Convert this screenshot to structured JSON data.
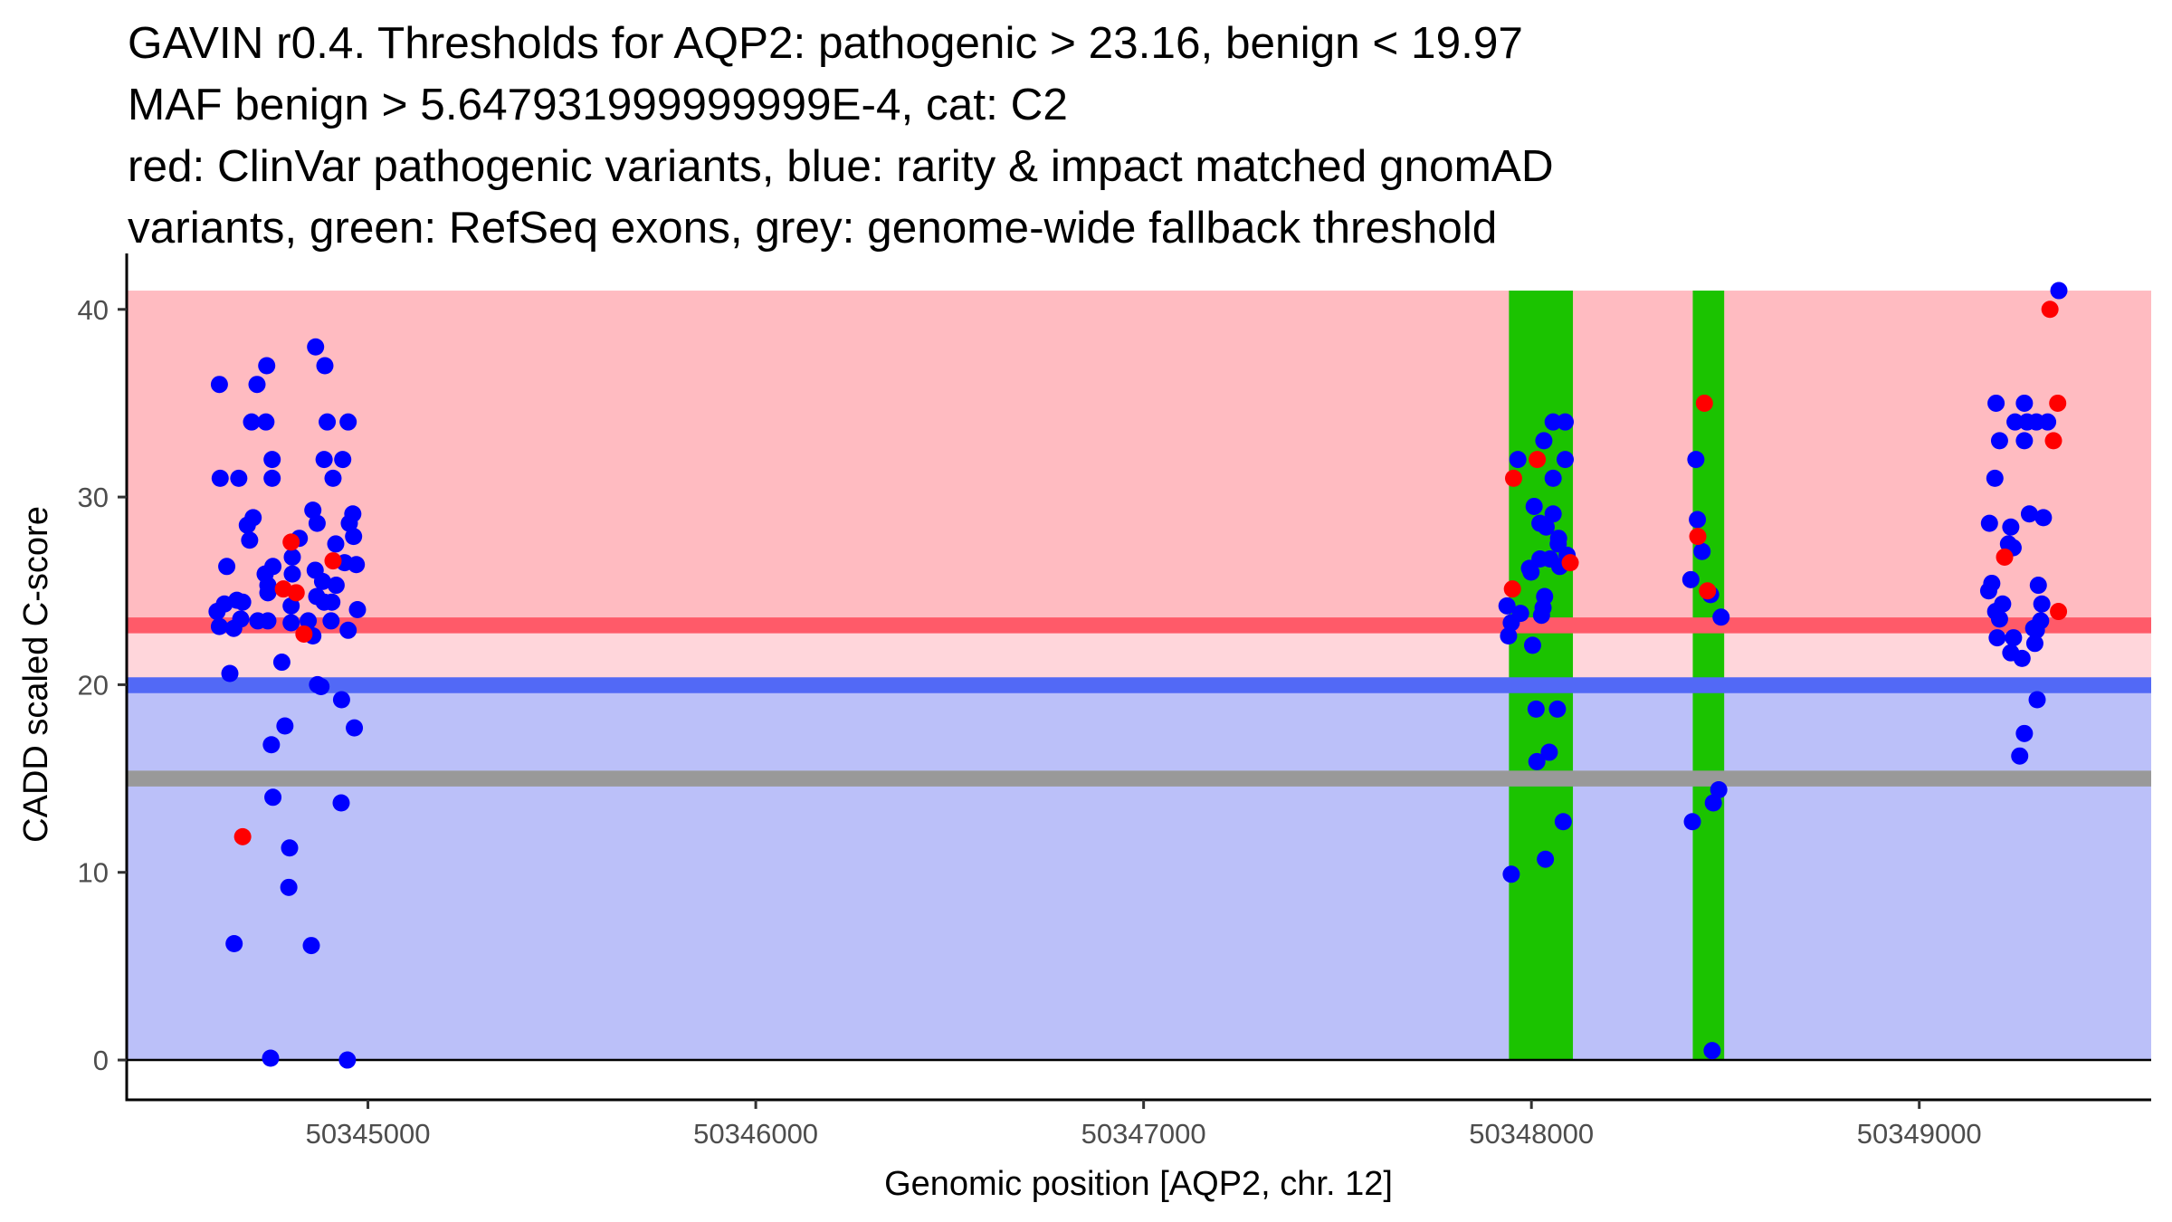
{
  "chart_data": {
    "type": "scatter",
    "title_lines": [
      "GAVIN r0.4. Thresholds for AQP2: pathogenic > 23.16, benign < 19.97",
      "MAF benign > 5.647931999999999E-4, cat: C2",
      "red: ClinVar pathogenic variants, blue: rarity & impact matched gnomAD",
      "variants, green: RefSeq exons, grey: genome-wide fallback threshold"
    ],
    "xlabel": "Genomic position [AQP2, chr. 12]",
    "ylabel": "CADD scaled C-score",
    "xlim": [
      50344378,
      50349598
    ],
    "ylim": [
      -2.12,
      42.98
    ],
    "x_ticks": [
      50345000,
      50346000,
      50347000,
      50348000,
      50349000
    ],
    "x_tick_labels": [
      "50345000",
      "50346000",
      "50347000",
      "50348000",
      "50349000"
    ],
    "y_ticks": [
      0,
      10,
      20,
      30,
      40
    ],
    "y_tick_labels": [
      "0",
      "10",
      "20",
      "30",
      "40"
    ],
    "grid": false,
    "legend": "none",
    "thresholds": {
      "pathogenic": 23.16,
      "benign": 19.97,
      "genome_wide_fallback": 15,
      "band_top": 41
    },
    "exons": [
      {
        "start": 50347942,
        "end": 50348107
      },
      {
        "start": 50348416,
        "end": 50348497
      }
    ],
    "colors": {
      "pathogenic_band": "#ffbbc1",
      "pathogenic_line": "#ff5a69",
      "grey_zone_band": "#ffd6db",
      "benign_line": "#5269f6",
      "benign_band": "#bbc0f9",
      "fallback_line": "#999999",
      "exon": "#1bc300",
      "clinvar_point": "#ff0000",
      "gnomad_point": "#0000ff"
    },
    "series": [
      {
        "name": "gnomAD matched variants",
        "color": "blue",
        "points": [
          [
            50344865,
            38.0
          ],
          [
            50344739,
            37.0
          ],
          [
            50344889,
            37.0
          ],
          [
            50344617,
            36.0
          ],
          [
            50344714,
            36.0
          ],
          [
            50344700,
            34.0
          ],
          [
            50344737,
            34.0
          ],
          [
            50344895,
            34.0
          ],
          [
            50344949,
            34.0
          ],
          [
            50344753,
            32.0
          ],
          [
            50344887,
            32.0
          ],
          [
            50344935,
            32.0
          ],
          [
            50344619,
            31.0
          ],
          [
            50344667,
            31.0
          ],
          [
            50344753,
            31.0
          ],
          [
            50344910,
            31.0
          ],
          [
            50344704,
            28.9
          ],
          [
            50344689,
            28.5
          ],
          [
            50344695,
            27.7
          ],
          [
            50344858,
            29.3
          ],
          [
            50344869,
            28.6
          ],
          [
            50344961,
            29.1
          ],
          [
            50344952,
            28.6
          ],
          [
            50344963,
            27.9
          ],
          [
            50344823,
            27.8
          ],
          [
            50344917,
            27.5
          ],
          [
            50344940,
            26.5
          ],
          [
            50344970,
            26.4
          ],
          [
            50344805,
            26.8
          ],
          [
            50344636,
            26.3
          ],
          [
            50344755,
            26.3
          ],
          [
            50344735,
            25.9
          ],
          [
            50344805,
            25.9
          ],
          [
            50344864,
            26.1
          ],
          [
            50344742,
            25.3
          ],
          [
            50344742,
            24.9
          ],
          [
            50344883,
            25.5
          ],
          [
            50344918,
            25.3
          ],
          [
            50344868,
            24.7
          ],
          [
            50344887,
            24.4
          ],
          [
            50344907,
            24.4
          ],
          [
            50344662,
            24.5
          ],
          [
            50344677,
            24.4
          ],
          [
            50344630,
            24.3
          ],
          [
            50344802,
            24.2
          ],
          [
            50344611,
            23.9
          ],
          [
            50344973,
            24.0
          ],
          [
            50344672,
            23.5
          ],
          [
            50344716,
            23.4
          ],
          [
            50344742,
            23.4
          ],
          [
            50344802,
            23.3
          ],
          [
            50344846,
            23.4
          ],
          [
            50344905,
            23.4
          ],
          [
            50344617,
            23.1
          ],
          [
            50344654,
            23.0
          ],
          [
            50344949,
            22.9
          ],
          [
            50344858,
            22.6
          ],
          [
            50344778,
            21.2
          ],
          [
            50344644,
            20.6
          ],
          [
            50344870,
            20.0
          ],
          [
            50344879,
            19.9
          ],
          [
            50344932,
            19.2
          ],
          [
            50344786,
            17.8
          ],
          [
            50344965,
            17.7
          ],
          [
            50344751,
            16.8
          ],
          [
            50344755,
            14.0
          ],
          [
            50344931,
            13.7
          ],
          [
            50344798,
            11.3
          ],
          [
            50344796,
            9.2
          ],
          [
            50344655,
            6.2
          ],
          [
            50344854,
            6.1
          ],
          [
            50344749,
            0.1
          ],
          [
            50344947,
            0.0
          ],
          [
            50348056,
            34.0
          ],
          [
            50348087,
            34.0
          ],
          [
            50348032,
            33.0
          ],
          [
            50347965,
            32.0
          ],
          [
            50348087,
            32.0
          ],
          [
            50348056,
            31.0
          ],
          [
            50348007,
            29.5
          ],
          [
            50348056,
            29.1
          ],
          [
            50348022,
            28.6
          ],
          [
            50348038,
            28.4
          ],
          [
            50348070,
            27.8
          ],
          [
            50348069,
            27.5
          ],
          [
            50348092,
            26.9
          ],
          [
            50348022,
            26.7
          ],
          [
            50348048,
            26.7
          ],
          [
            50348073,
            26.3
          ],
          [
            50347995,
            26.2
          ],
          [
            50347999,
            26.0
          ],
          [
            50348034,
            24.7
          ],
          [
            50348030,
            24.1
          ],
          [
            50348026,
            23.7
          ],
          [
            50347937,
            24.2
          ],
          [
            50347972,
            23.8
          ],
          [
            50347948,
            23.3
          ],
          [
            50347941,
            22.6
          ],
          [
            50348003,
            22.1
          ],
          [
            50348012,
            18.7
          ],
          [
            50348067,
            18.7
          ],
          [
            50348046,
            16.4
          ],
          [
            50348014,
            15.9
          ],
          [
            50348082,
            12.7
          ],
          [
            50348036,
            10.7
          ],
          [
            50347948,
            9.9
          ],
          [
            50348424,
            32.0
          ],
          [
            50348428,
            28.8
          ],
          [
            50348440,
            27.1
          ],
          [
            50348411,
            25.6
          ],
          [
            50348462,
            24.8
          ],
          [
            50348489,
            23.6
          ],
          [
            50348483,
            14.4
          ],
          [
            50348469,
            13.7
          ],
          [
            50348415,
            12.7
          ],
          [
            50348466,
            0.5
          ],
          [
            50349360,
            41.0
          ],
          [
            50349198,
            35.0
          ],
          [
            50349271,
            35.0
          ],
          [
            50349247,
            34.0
          ],
          [
            50349278,
            34.0
          ],
          [
            50349302,
            34.0
          ],
          [
            50349331,
            34.0
          ],
          [
            50349207,
            33.0
          ],
          [
            50349271,
            33.0
          ],
          [
            50349195,
            31.0
          ],
          [
            50349181,
            28.6
          ],
          [
            50349236,
            28.4
          ],
          [
            50349284,
            29.1
          ],
          [
            50349320,
            28.9
          ],
          [
            50349230,
            27.5
          ],
          [
            50349242,
            27.3
          ],
          [
            50349187,
            25.4
          ],
          [
            50349179,
            25.0
          ],
          [
            50349307,
            25.3
          ],
          [
            50349215,
            24.3
          ],
          [
            50349197,
            23.9
          ],
          [
            50349207,
            23.5
          ],
          [
            50349316,
            24.3
          ],
          [
            50349313,
            23.4
          ],
          [
            50349295,
            23.0
          ],
          [
            50349201,
            22.5
          ],
          [
            50349243,
            22.5
          ],
          [
            50349236,
            21.7
          ],
          [
            50349265,
            21.4
          ],
          [
            50349298,
            22.2
          ],
          [
            50349302,
            22.9
          ],
          [
            50349304,
            19.2
          ],
          [
            50349271,
            17.4
          ],
          [
            50349259,
            16.2
          ]
        ]
      },
      {
        "name": "ClinVar pathogenic variants",
        "color": "red",
        "points": [
          [
            50344802,
            27.6
          ],
          [
            50344910,
            26.6
          ],
          [
            50344782,
            25.1
          ],
          [
            50344815,
            24.9
          ],
          [
            50344835,
            22.7
          ],
          [
            50344677,
            11.9
          ],
          [
            50348015,
            32.0
          ],
          [
            50347954,
            31.0
          ],
          [
            50348100,
            26.5
          ],
          [
            50347951,
            25.1
          ],
          [
            50348446,
            35.0
          ],
          [
            50348429,
            27.9
          ],
          [
            50348454,
            25.0
          ],
          [
            50349337,
            40.0
          ],
          [
            50349357,
            35.0
          ],
          [
            50349346,
            33.0
          ],
          [
            50349220,
            26.8
          ],
          [
            50349359,
            23.9
          ]
        ]
      }
    ]
  }
}
